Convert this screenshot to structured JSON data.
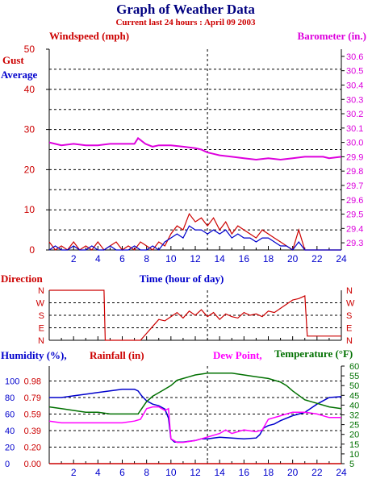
{
  "header": {
    "title": "Graph of Weather Data",
    "subtitle": "Current last 24 hours : April 09 2003"
  },
  "colors": {
    "title": "#000080",
    "subtitle": "#cc0000",
    "wind_gust": "#cc0000",
    "wind_average": "#0000cc",
    "barometer": "#dd00dd",
    "direction": "#cc0000",
    "humidity": "#0000cc",
    "rainfall": "#cc0000",
    "dewpoint": "#ff00ff",
    "temperature": "#007000",
    "grid": "#000000"
  },
  "chart_data": [
    {
      "type": "line",
      "labels": {
        "left": "Windspeed (mph)",
        "right": "Barometer (in.)",
        "gust": "Gust",
        "average": "Average"
      },
      "ylim": [
        0,
        50
      ],
      "y_ticks": [
        "0",
        "10",
        "20",
        "30",
        "40",
        "50"
      ],
      "y2lim": [
        29.25,
        30.65
      ],
      "y2_ticks": [
        "29.3",
        "29.4",
        "29.5",
        "29.6",
        "29.7",
        "29.8",
        "29.9",
        "30.0",
        "30.1",
        "30.2",
        "30.3",
        "30.4",
        "30.5",
        "30.6"
      ],
      "xlim": [
        0,
        24
      ],
      "x_ticks": [
        "2",
        "4",
        "6",
        "8",
        "10",
        "12",
        "14",
        "16",
        "18",
        "20",
        "22",
        "24"
      ],
      "grid": true,
      "series": [
        {
          "name": "Barometer",
          "axis": "right",
          "x": [
            0,
            1,
            2,
            3,
            4,
            5,
            6,
            7,
            7.3,
            7.9,
            8.5,
            9,
            10,
            11,
            12,
            12.5,
            13,
            13.5,
            14,
            15,
            16,
            17,
            18,
            19,
            20,
            21,
            22,
            22.5,
            23,
            24
          ],
          "y": [
            30.0,
            29.98,
            29.99,
            29.98,
            29.98,
            29.99,
            29.99,
            29.99,
            30.03,
            29.99,
            29.97,
            29.98,
            29.98,
            29.97,
            29.96,
            29.95,
            29.93,
            29.92,
            29.91,
            29.9,
            29.89,
            29.88,
            29.89,
            29.88,
            29.89,
            29.9,
            29.9,
            29.9,
            29.89,
            29.9
          ]
        },
        {
          "name": "Gust",
          "axis": "left",
          "x": [
            0,
            0.5,
            1,
            1.5,
            2,
            2.5,
            3,
            3.5,
            4,
            4.5,
            5,
            5.5,
            6,
            6.5,
            7,
            7.5,
            8,
            8.5,
            9,
            9.5,
            10,
            10.5,
            11,
            11.5,
            12,
            12.5,
            13,
            13.5,
            14,
            14.5,
            15,
            15.5,
            16,
            16.5,
            17,
            17.5,
            18,
            18.5,
            19,
            19.5,
            20,
            20.5,
            21,
            22,
            23,
            24
          ],
          "y": [
            2,
            0,
            1,
            0,
            2,
            0,
            1,
            0,
            2,
            0,
            1,
            2,
            0,
            1,
            0,
            2,
            1,
            0,
            2,
            1,
            4,
            6,
            5,
            9,
            7,
            8,
            6,
            8,
            5,
            7,
            4,
            6,
            5,
            4,
            3,
            5,
            4,
            3,
            2,
            1,
            0,
            5,
            0,
            0,
            0,
            0
          ]
        },
        {
          "name": "Average",
          "axis": "left",
          "x": [
            0,
            0.5,
            1,
            1.5,
            2,
            2.5,
            3,
            3.5,
            4,
            4.5,
            5,
            5.5,
            6,
            6.5,
            7,
            7.5,
            8,
            8.5,
            9,
            9.5,
            10,
            10.5,
            11,
            11.5,
            12,
            12.5,
            13,
            13.5,
            14,
            14.5,
            15,
            15.5,
            16,
            16.5,
            17,
            17.5,
            18,
            18.5,
            19,
            19.5,
            20,
            20.5,
            21,
            22,
            23,
            24
          ],
          "y": [
            0,
            1,
            0,
            0,
            1,
            0,
            0,
            1,
            0,
            0,
            1,
            0,
            0,
            0,
            1,
            0,
            0,
            1,
            0,
            2,
            3,
            4,
            3,
            6,
            5,
            5,
            4,
            5,
            4,
            5,
            3,
            4,
            3,
            3,
            2,
            3,
            3,
            2,
            1,
            1,
            0,
            2,
            0,
            0,
            0,
            0
          ]
        }
      ]
    },
    {
      "type": "line",
      "labels": {
        "left": "Direction",
        "x": "Time (hour of day)"
      },
      "y_ticks": [
        "N",
        "W",
        "S",
        "E",
        "N"
      ],
      "ylim": [
        0,
        360
      ],
      "xlim": [
        0,
        24
      ],
      "grid": true,
      "series": [
        {
          "name": "Direction",
          "x": [
            0,
            4.5,
            4.6,
            7.5,
            8,
            8.5,
            9,
            9.5,
            10,
            10.5,
            11,
            11.5,
            12,
            12.5,
            13,
            13.5,
            14,
            14.5,
            15,
            15.5,
            16,
            16.5,
            17,
            17.5,
            18,
            18.5,
            19,
            19.5,
            20,
            20.5,
            21,
            21.2,
            24
          ],
          "y": [
            360,
            360,
            0,
            0,
            50,
            100,
            150,
            140,
            170,
            200,
            160,
            210,
            180,
            220,
            170,
            200,
            150,
            190,
            170,
            160,
            200,
            180,
            190,
            170,
            210,
            200,
            230,
            260,
            290,
            300,
            320,
            30,
            30
          ]
        }
      ]
    },
    {
      "type": "line",
      "labels": {
        "humidity": "Humidity (%),",
        "rainfall": "Rainfall (in)",
        "dewpoint": "Dew Point,",
        "temperature": "Temperature (°F)"
      },
      "humidity_ticks": [
        "0",
        "20",
        "40",
        "60",
        "80",
        "100"
      ],
      "humidity_lim": [
        0,
        118
      ],
      "rain_ticks": [
        "0.00",
        "0.20",
        "0.39",
        "0.59",
        "0.79",
        "0.98"
      ],
      "temp_ticks": [
        "5",
        "10",
        "15",
        "20",
        "25",
        "32",
        "40",
        "45",
        "50",
        "55",
        "60"
      ],
      "temp_lim": [
        5,
        60
      ],
      "xlim": [
        0,
        24
      ],
      "x_ticks": [
        "2",
        "4",
        "6",
        "8",
        "10",
        "12",
        "14",
        "16",
        "18",
        "20",
        "22",
        "24"
      ],
      "grid": true,
      "series": [
        {
          "name": "Humidity",
          "axis": "humidity",
          "x": [
            0,
            1,
            2,
            3,
            4,
            5,
            6,
            7,
            7.3,
            7.6,
            8,
            8.5,
            9,
            9.5,
            9.8,
            10,
            10.3,
            11,
            12,
            12.5,
            13,
            13.5,
            14,
            15,
            16,
            17,
            17.3,
            17.6,
            18,
            18.5,
            19,
            20,
            21,
            22,
            23,
            24
          ],
          "y": [
            80,
            80,
            82,
            84,
            86,
            88,
            90,
            90,
            88,
            82,
            76,
            72,
            70,
            66,
            55,
            30,
            26,
            26,
            28,
            30,
            30,
            31,
            32,
            31,
            30,
            31,
            35,
            43,
            46,
            48,
            52,
            58,
            62,
            72,
            80,
            81
          ]
        },
        {
          "name": "Temperature",
          "axis": "temp",
          "x": [
            0,
            1,
            2,
            3,
            4,
            5,
            6,
            7,
            7.3,
            7.6,
            8,
            8.5,
            9,
            9.5,
            10,
            10.5,
            11,
            11.5,
            12,
            13,
            14,
            15,
            16,
            17,
            18,
            18.5,
            19,
            19.5,
            20,
            21,
            22,
            23,
            24
          ],
          "y": [
            37,
            36,
            35,
            34,
            34,
            33,
            33,
            33,
            33,
            36,
            40,
            43,
            45,
            47,
            49,
            52,
            53,
            54,
            55,
            56,
            56,
            56,
            55,
            54,
            53,
            52,
            51,
            49,
            46,
            41,
            39,
            37,
            36
          ]
        },
        {
          "name": "Dew Point",
          "axis": "temp",
          "x": [
            0,
            1,
            2,
            3,
            4,
            5,
            6,
            7,
            7.5,
            8,
            8.5,
            9,
            9.5,
            9.8,
            10,
            10.5,
            11,
            12,
            12.5,
            13,
            13.5,
            14,
            14.5,
            15,
            16,
            17,
            17.5,
            18,
            19,
            19.5,
            20,
            21,
            22,
            23,
            24
          ],
          "y": [
            29,
            28,
            28,
            28,
            28,
            28,
            28,
            29,
            30,
            36,
            37,
            37,
            35,
            36,
            19,
            17,
            17,
            18,
            19,
            20,
            21,
            22,
            24,
            22,
            24,
            23,
            24,
            30,
            32,
            33,
            34,
            34,
            33,
            31,
            31
          ]
        }
      ]
    }
  ]
}
